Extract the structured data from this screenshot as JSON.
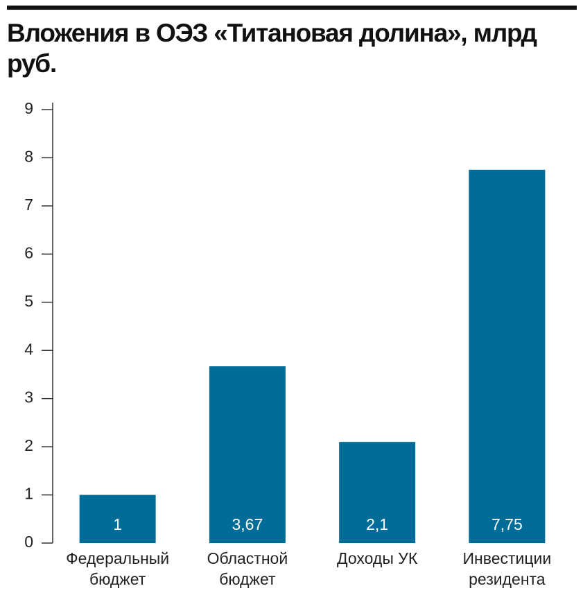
{
  "chart_data": {
    "type": "bar",
    "title": "Вложения в ОЭЗ «Титановая долина», млрд руб.",
    "categories": [
      "Федеральный бюджет",
      "Областной бюджет",
      "Доходы УК",
      "Инвестиции резидента"
    ],
    "values": [
      1,
      3.67,
      2.1,
      7.75
    ],
    "value_labels": [
      "1",
      "3,67",
      "2,1",
      "7,75"
    ],
    "color": "#006d99",
    "ylim": [
      0,
      9
    ],
    "yticks": [
      0,
      1,
      2,
      3,
      4,
      5,
      6,
      7,
      8,
      9
    ],
    "grid": false
  }
}
